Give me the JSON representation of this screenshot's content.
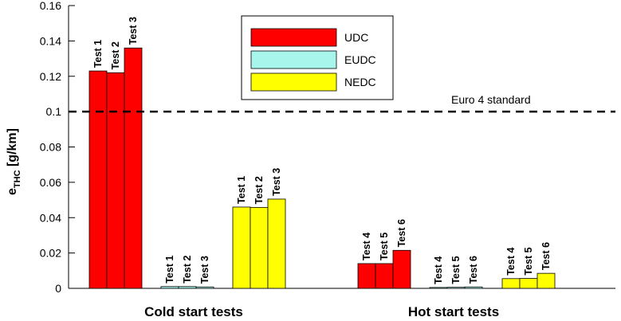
{
  "chart_data": {
    "type": "bar",
    "ylabel": {
      "main": "e",
      "sub": "THC",
      "unit": " [g/km]"
    },
    "ylim": [
      0,
      0.16
    ],
    "yticks": [
      0,
      0.02,
      0.04,
      0.06,
      0.08,
      0.1,
      0.12,
      0.14,
      0.16
    ],
    "grid": false,
    "legend_position": "top-center",
    "series": [
      {
        "name": "UDC",
        "color": "#ff0000"
      },
      {
        "name": "EUDC",
        "color": "#a8f5ec"
      },
      {
        "name": "NEDC",
        "color": "#ffff00"
      }
    ],
    "groups": [
      {
        "label": "Cold start tests",
        "series_bars": [
          {
            "series": "UDC",
            "tests": [
              "Test 1",
              "Test 2",
              "Test 3"
            ],
            "values": [
              0.123,
              0.122,
              0.136
            ]
          },
          {
            "series": "EUDC",
            "tests": [
              "Test 1",
              "Test 2",
              "Test 3"
            ],
            "values": [
              0.001,
              0.001,
              0.0008
            ]
          },
          {
            "series": "NEDC",
            "tests": [
              "Test 1",
              "Test 2",
              "Test 3"
            ],
            "values": [
              0.046,
              0.0458,
              0.0505
            ]
          }
        ]
      },
      {
        "label": "Hot start tests",
        "series_bars": [
          {
            "series": "UDC",
            "tests": [
              "Test 4",
              "Test 5",
              "Test 6"
            ],
            "values": [
              0.014,
              0.014,
              0.0215
            ]
          },
          {
            "series": "EUDC",
            "tests": [
              "Test 4",
              "Test 5",
              "Test 6"
            ],
            "values": [
              0.0005,
              0.0006,
              0.0008
            ]
          },
          {
            "series": "NEDC",
            "tests": [
              "Test 4",
              "Test 5",
              "Test 6"
            ],
            "values": [
              0.0055,
              0.0056,
              0.0085
            ]
          }
        ]
      }
    ],
    "reference_line": {
      "value": 0.1,
      "label": "Euro 4 standard",
      "style": "dashed"
    }
  }
}
